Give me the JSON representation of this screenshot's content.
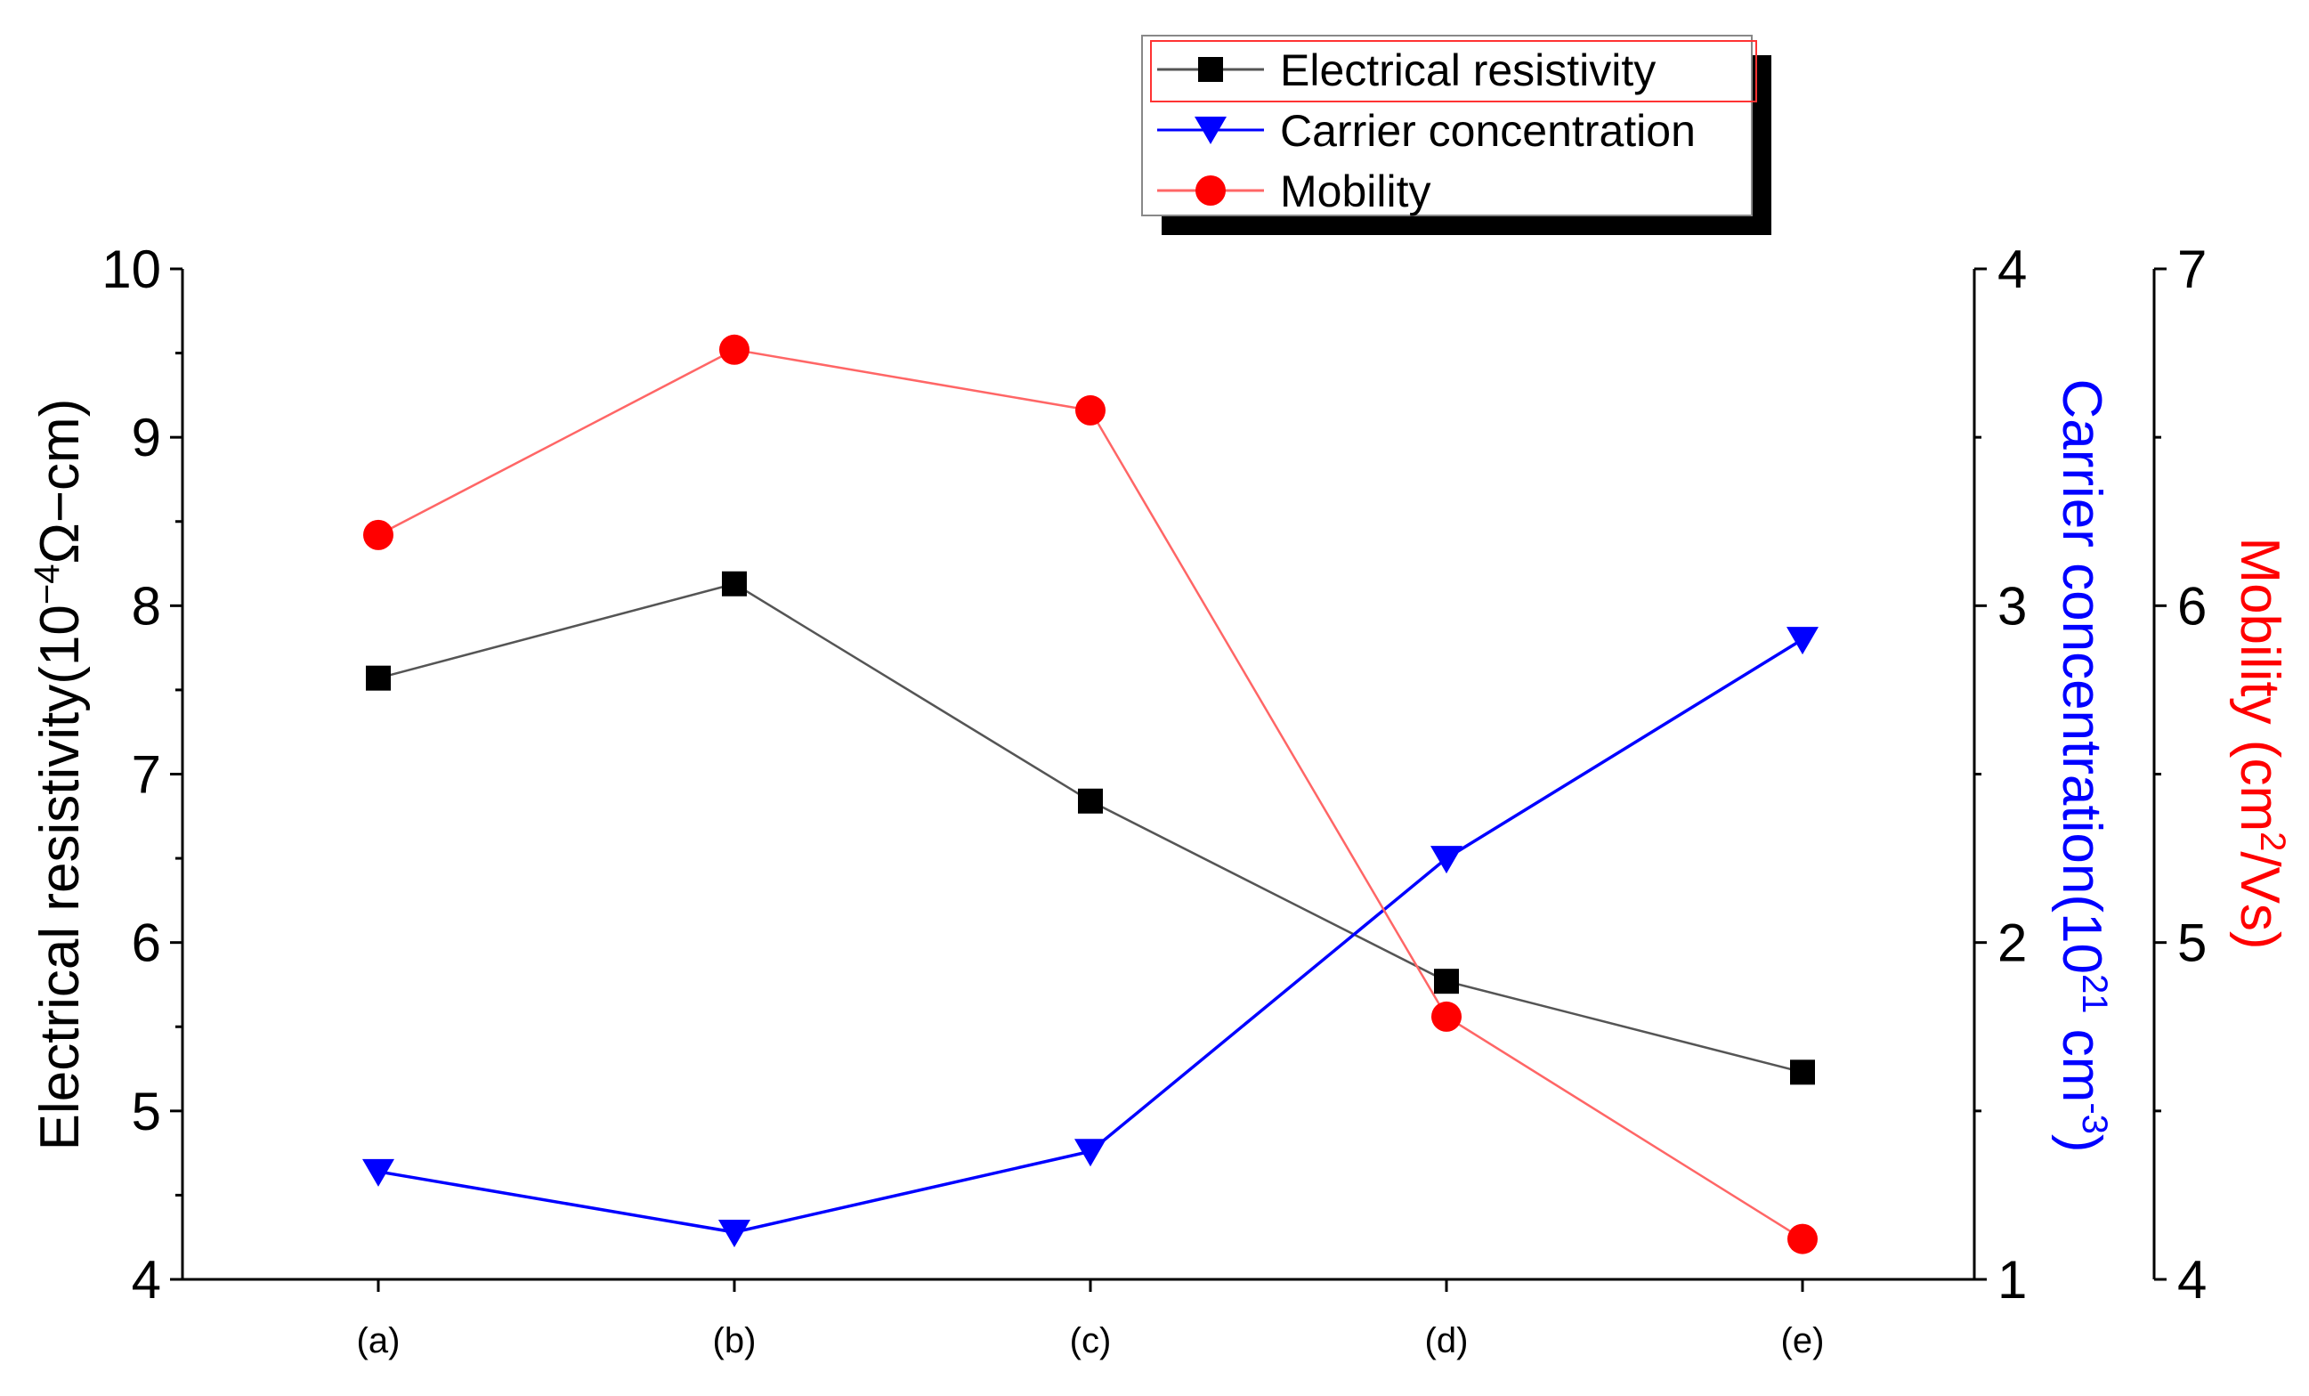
{
  "chart_data": {
    "type": "line",
    "categories": [
      "(a)",
      "(b)",
      "(c)",
      "(d)",
      "(e)"
    ],
    "series": [
      {
        "name": "Electrical resistivity",
        "axis": "left",
        "marker": "square",
        "color": "#000000",
        "line_color": "#555555",
        "values": [
          7.57,
          8.13,
          6.84,
          5.77,
          5.23
        ]
      },
      {
        "name": "Carrier concentration",
        "axis": "right1",
        "marker": "triangle-down",
        "color": "#0000ff",
        "line_color": "#0000ff",
        "values": [
          1.32,
          1.14,
          1.38,
          2.25,
          2.9
        ]
      },
      {
        "name": "Mobility",
        "axis": "right2",
        "marker": "circle",
        "color": "#ff0000",
        "line_color": "#ff6666",
        "values": [
          6.21,
          6.76,
          6.58,
          4.78,
          4.12
        ]
      }
    ],
    "axes": {
      "left": {
        "label_parts": [
          "Electrical resistivity(10",
          "−4",
          "Ω−cm)"
        ],
        "ylim": [
          4,
          10
        ],
        "ticks": [
          "4",
          "5",
          "6",
          "7",
          "8",
          "9",
          "10"
        ],
        "color": "#000000"
      },
      "right1": {
        "label_parts": [
          "Carrier concentration(10",
          "21",
          " cm",
          "-3",
          ")"
        ],
        "ylim": [
          1,
          4
        ],
        "ticks": [
          "1",
          "2",
          "3",
          "4"
        ],
        "color": "#0000ff"
      },
      "right2": {
        "label_parts": [
          "Mobility (cm",
          "2",
          "/Vs)"
        ],
        "ylim": [
          4,
          7
        ],
        "ticks": [
          "4",
          "5",
          "6",
          "7"
        ],
        "color": "#ff0000"
      }
    },
    "legend": {
      "position": "top-right",
      "entries": [
        "Electrical resistivity",
        "Carrier concentration",
        "Mobility"
      ]
    }
  }
}
